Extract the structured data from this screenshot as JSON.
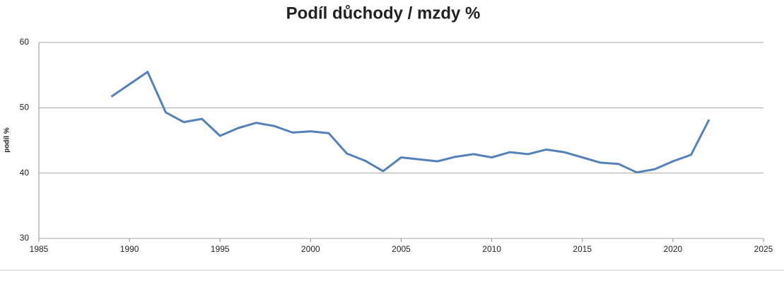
{
  "chart_data": {
    "type": "line",
    "title": "Podíl důchody / mzdy %",
    "ylabel": "podíl %",
    "x": [
      1989,
      1990,
      1991,
      1992,
      1993,
      1994,
      1995,
      1996,
      1997,
      1998,
      1999,
      2000,
      2001,
      2002,
      2003,
      2004,
      2005,
      2006,
      2007,
      2008,
      2009,
      2010,
      2011,
      2012,
      2013,
      2014,
      2015,
      2016,
      2017,
      2018,
      2019,
      2020,
      2021,
      2022
    ],
    "values": [
      51.7,
      53.6,
      55.5,
      49.3,
      47.8,
      48.3,
      45.7,
      46.9,
      47.7,
      47.2,
      46.2,
      46.4,
      46.1,
      43.0,
      41.9,
      40.3,
      42.4,
      42.1,
      41.8,
      42.5,
      42.9,
      42.4,
      43.2,
      42.9,
      43.6,
      43.2,
      42.4,
      41.6,
      41.4,
      40.1,
      40.6,
      41.8,
      42.8,
      48.2
    ],
    "color": "#5581b9",
    "xlim": [
      1985,
      2025
    ],
    "xticks": [
      1985,
      1990,
      1995,
      2000,
      2005,
      2010,
      2015,
      2020,
      2025
    ],
    "ylim": [
      30,
      60
    ],
    "yticks": [
      30,
      40,
      50,
      60
    ],
    "grid": true
  }
}
